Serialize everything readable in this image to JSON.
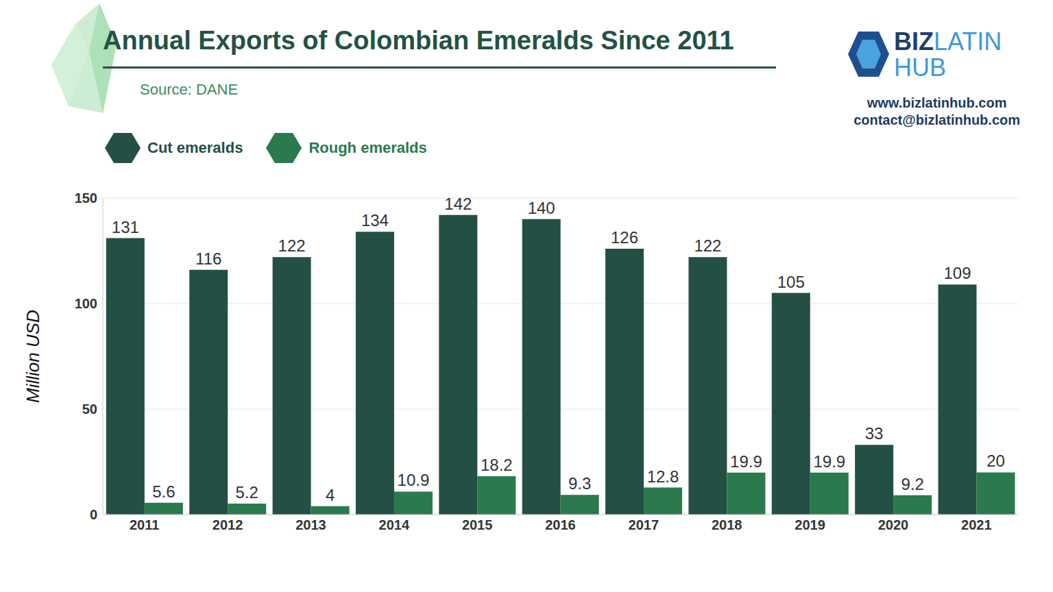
{
  "chart_data": {
    "type": "bar",
    "title": "Annual Exports of Colombian Emeralds Since 2011",
    "subtitle": "Source: DANE",
    "annotations": [
      "BIZ",
      "LATIN",
      "HUB",
      "www.bizlatinhub.com",
      "contact@bizlatinhub.com"
    ],
    "y_label": "Million USD",
    "categories": [
      "2011",
      "2012",
      "2013",
      "2014",
      "2015",
      "2016",
      "2017",
      "2018",
      "2019",
      "2020",
      "2021"
    ],
    "series": [
      {
        "name": "Cut emeralds",
        "color": "#244f45",
        "values": [
          131,
          116,
          122,
          134,
          142,
          140,
          126,
          122,
          105,
          33,
          109
        ]
      },
      {
        "name": "Rough emeralds",
        "color": "#2a7a4e",
        "values": [
          5.6,
          5.2,
          4,
          10.9,
          18.2,
          9.3,
          12.8,
          19.9,
          19.9,
          9.2,
          20
        ]
      }
    ],
    "ylim": [
      0,
      150
    ],
    "yticks": [
      0,
      50,
      100,
      150
    ],
    "grid": true,
    "legend": "top-left",
    "data_labels": true
  }
}
